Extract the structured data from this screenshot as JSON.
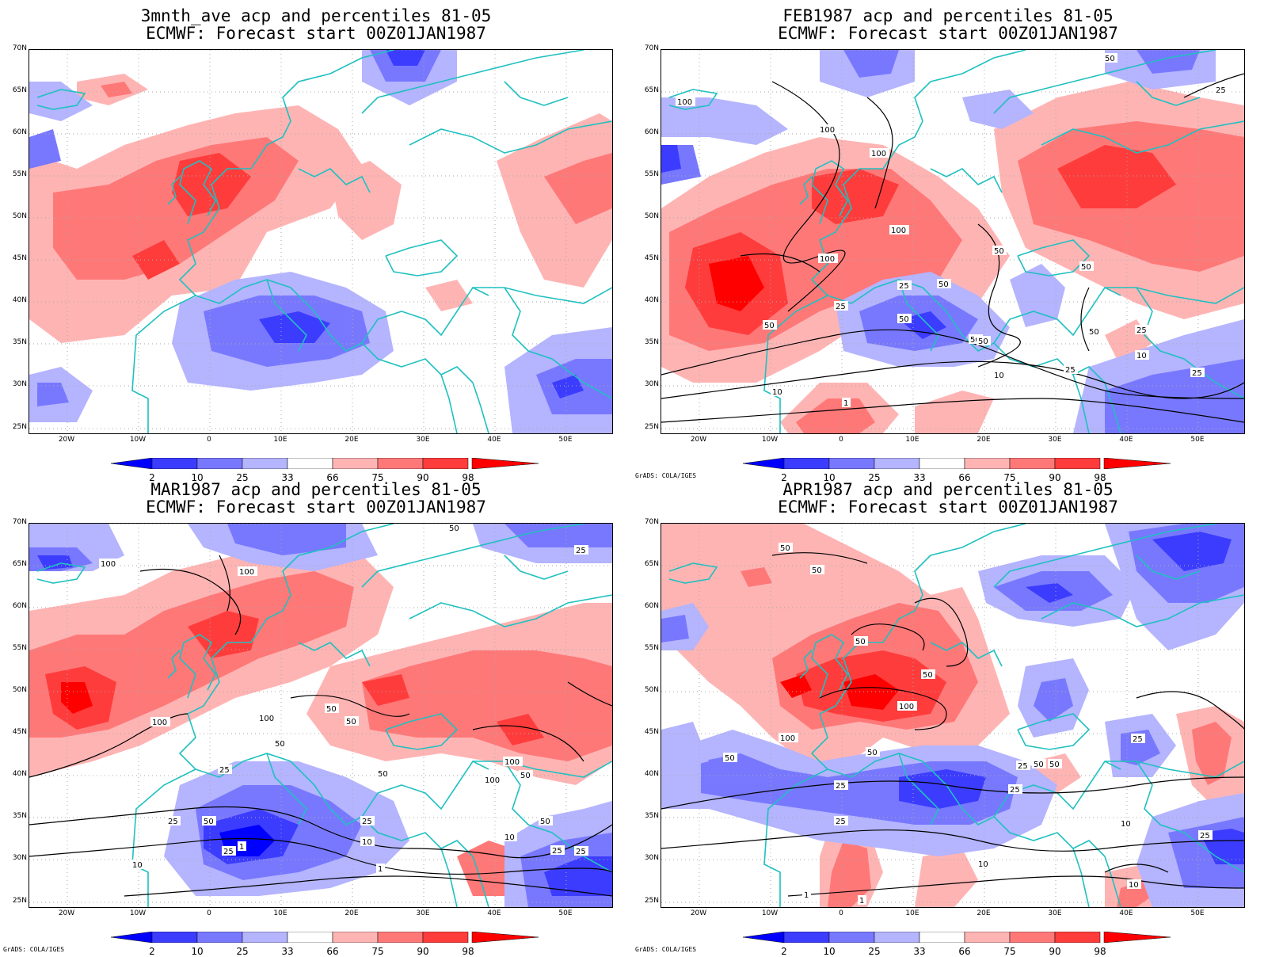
{
  "latitude_labels": [
    "70N",
    "65N",
    "60N",
    "55N",
    "50N",
    "45N",
    "40N",
    "35N",
    "30N",
    "25N"
  ],
  "longitude_labels": [
    "20W",
    "10W",
    "0",
    "10E",
    "20E",
    "30E",
    "40E",
    "50E"
  ],
  "colorbar": {
    "labels": [
      "2",
      "10",
      "25",
      "33",
      "66",
      "75",
      "90",
      "98"
    ],
    "colors": [
      "#0000ff",
      "#3c3cff",
      "#7878ff",
      "#b4b4ff",
      "#ffffff",
      "#ffb4b4",
      "#ff7878",
      "#ff3c3c",
      "#ff0000"
    ]
  },
  "colors": {
    "coastline": "#20c0c0",
    "contour": "#000000",
    "grid": "#aaaaaa"
  },
  "credit": "GrADS: COLA/IGES",
  "panels": [
    {
      "title": "3mnth_ave acp and percentiles 81-05",
      "subtitle": "ECMWF: Forecast start 00Z01JAN1987",
      "credit": "",
      "contour_labels": []
    },
    {
      "title": "FEB1987 acp and percentiles 81-05",
      "subtitle": "ECMWF: Forecast start 00Z01JAN1987",
      "credit": "GrADS: COLA/IGES",
      "contour_labels": [
        "50",
        "25",
        "100",
        "100",
        "100",
        "100",
        "100",
        "50",
        "25",
        "50",
        "50",
        "50",
        "25",
        "50",
        "50",
        "25",
        "50",
        "50",
        "10",
        "10",
        "25",
        "25",
        "10",
        "1"
      ]
    },
    {
      "title": "MAR1987 acp and percentiles 81-05",
      "subtitle": "ECMWF: Forecast start 00Z01JAN1987",
      "credit": "GrADS: COLA/IGES",
      "contour_labels": [
        "50",
        "25",
        "100",
        "100",
        "100",
        "100",
        "50",
        "50",
        "50",
        "50",
        "100",
        "100",
        "50",
        "25",
        "25",
        "50",
        "25",
        "10",
        "1",
        "10",
        "10",
        "1",
        "50",
        "25",
        "25",
        "25"
      ]
    },
    {
      "title": "APR1987 acp and percentiles 81-05",
      "subtitle": "ECMWF: Forecast start 00Z01JAN1987",
      "credit": "GrADS: COLA/IGES",
      "contour_labels": [
        "50",
        "50",
        "50",
        "50",
        "100",
        "100",
        "50",
        "50",
        "25",
        "25",
        "25",
        "25",
        "50",
        "50",
        "10",
        "10",
        "1",
        "1",
        "10",
        "25",
        "25"
      ]
    }
  ]
}
